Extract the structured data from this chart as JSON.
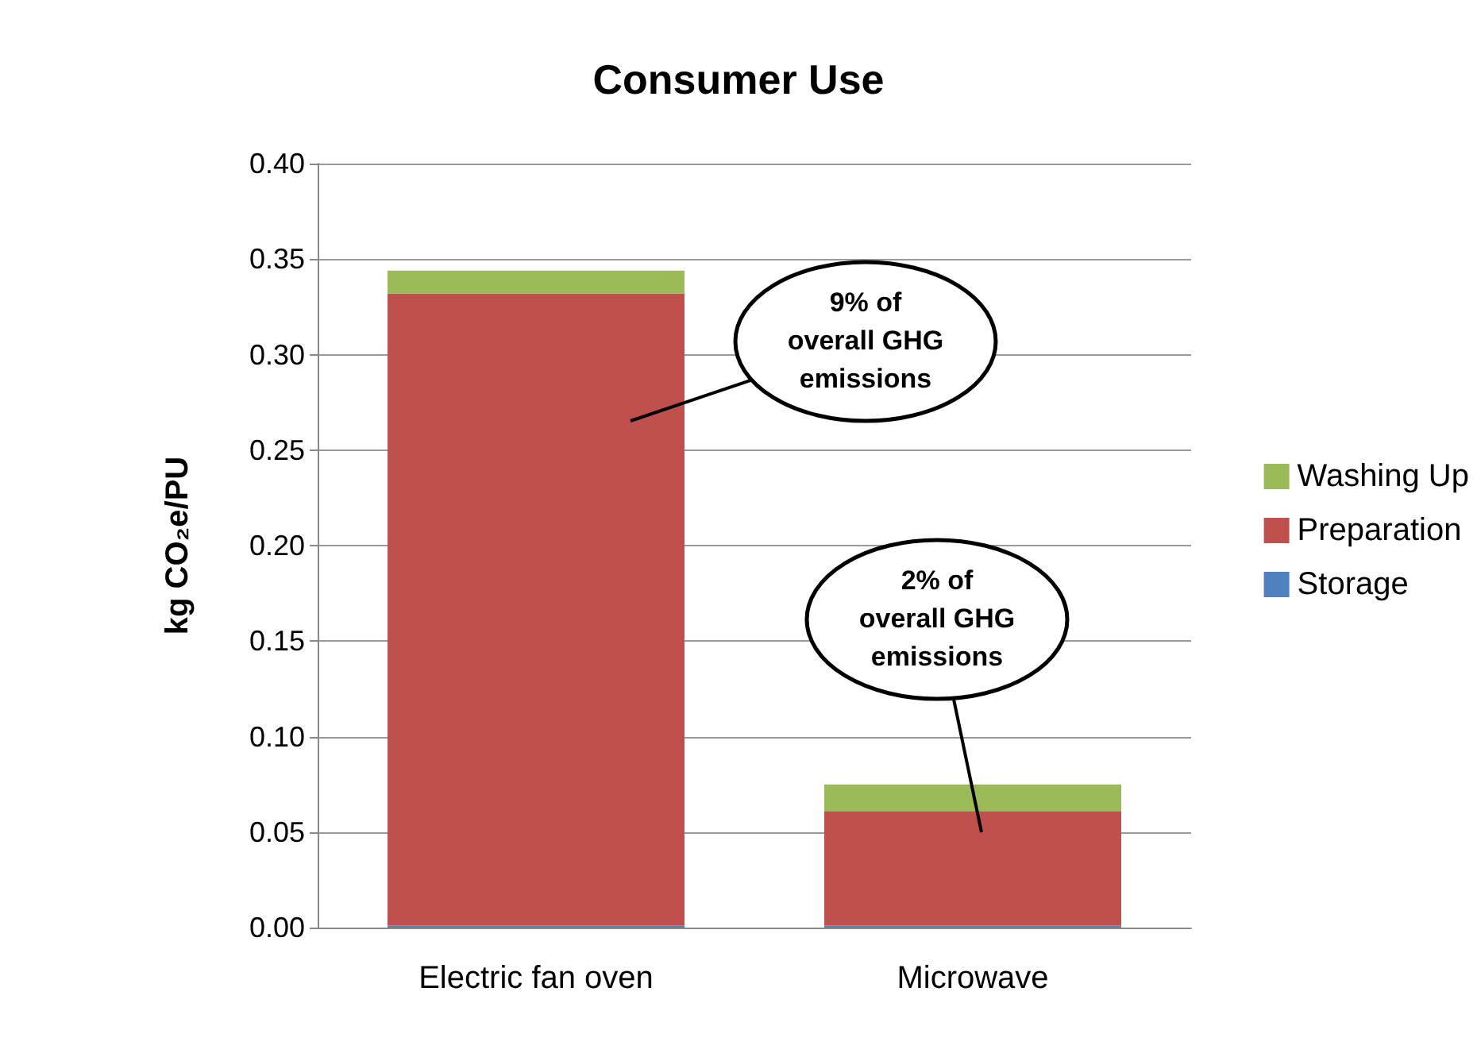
{
  "chart_data": {
    "type": "bar",
    "title": "Consumer Use",
    "ylabel": "kg CO₂e/PU",
    "categories": [
      "Electric fan oven",
      "Microwave"
    ],
    "stacked": true,
    "series": [
      {
        "name": "Storage",
        "color": "#4f81bd",
        "values": [
          0.001,
          0.001
        ]
      },
      {
        "name": "Preparation",
        "color": "#c0504d",
        "values": [
          0.331,
          0.06
        ]
      },
      {
        "name": "Washing Up",
        "color": "#9bbb59",
        "values": [
          0.012,
          0.014
        ]
      }
    ],
    "ylim": [
      0,
      0.4
    ],
    "yticks": [
      {
        "value": 0,
        "label": "0.00"
      },
      0.05,
      {
        "value": 0.1,
        "label": "0.10"
      },
      0.15,
      {
        "value": 0.2,
        "label": "0.20"
      },
      0.25,
      {
        "value": 0.3,
        "label": "0.30"
      },
      0.35,
      {
        "value": 0.4,
        "label": "0.40"
      }
    ],
    "grid": "y",
    "legend": "right",
    "annotations": [
      "9% of\noverall GHG\nemissions",
      "2% of\noverall GHG\nemissions"
    ]
  }
}
